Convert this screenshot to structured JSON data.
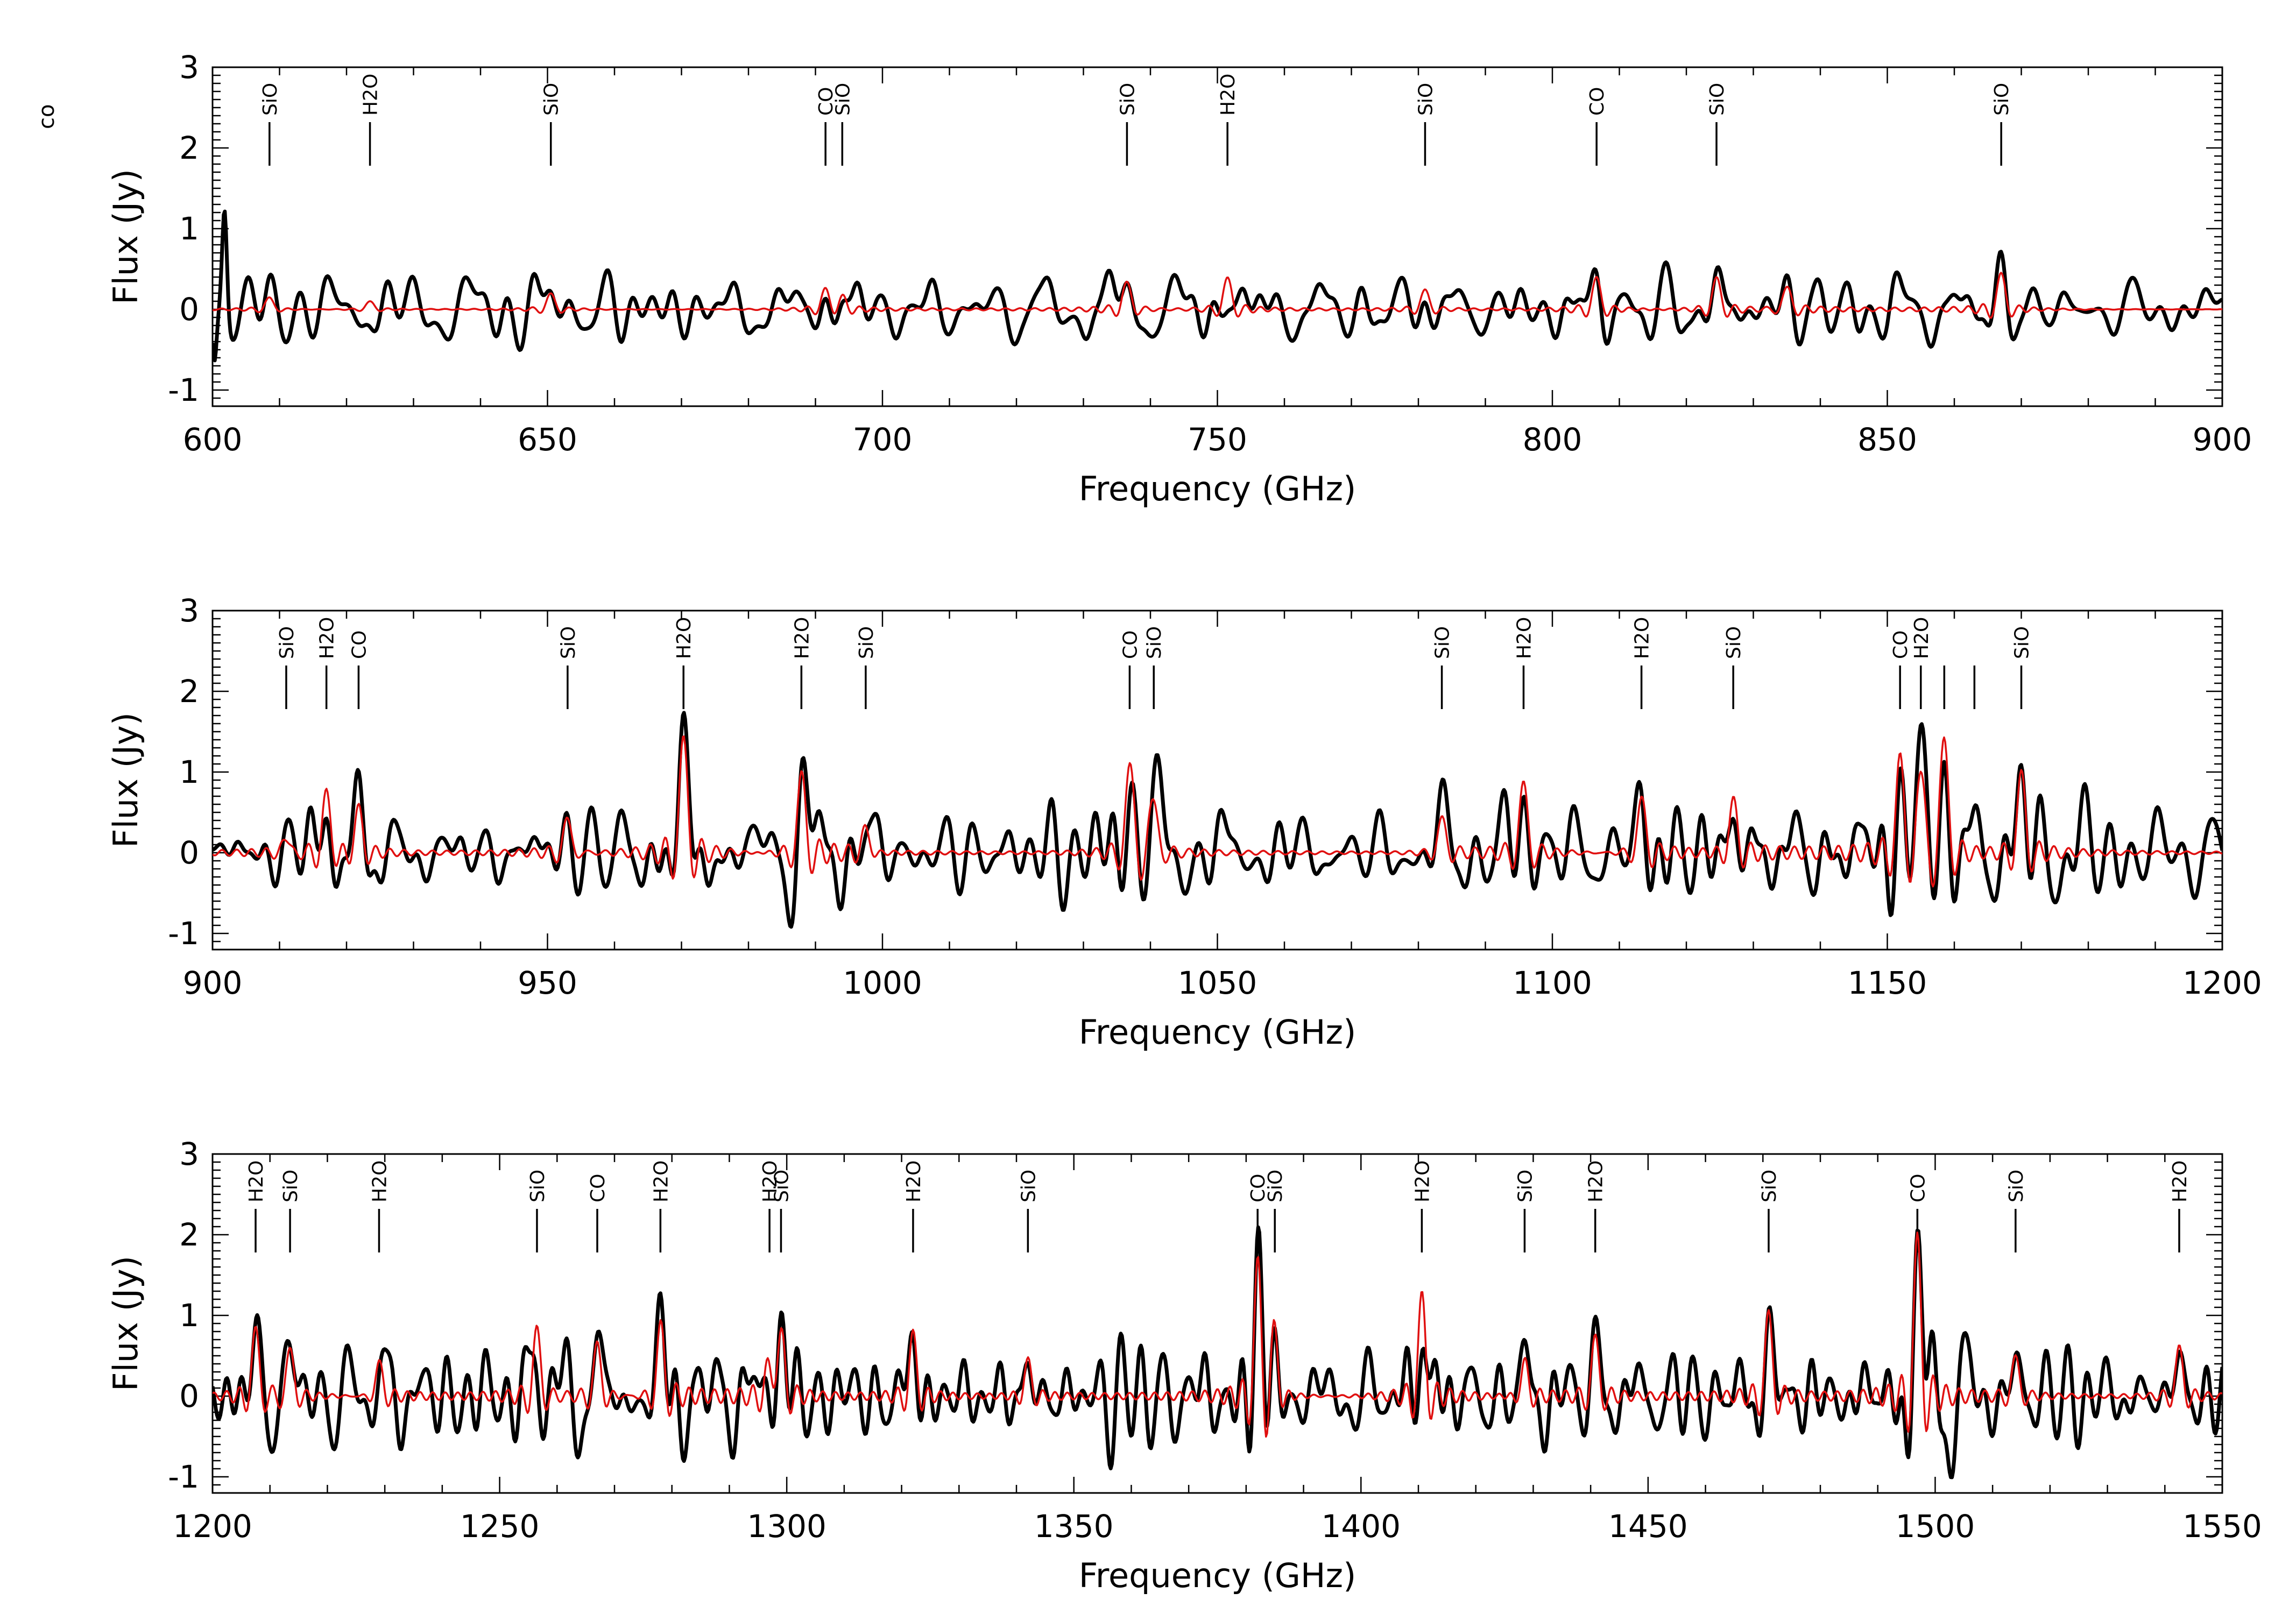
{
  "corner_label": "co",
  "colors": {
    "observed": "#000000",
    "model": "#e01010"
  },
  "chart_data": [
    {
      "type": "line",
      "xlabel": "Frequency (GHz)",
      "ylabel": "Flux (Jy)",
      "xlim": [
        600,
        900
      ],
      "ylim": [
        -1.2,
        3.0
      ],
      "xticks": [
        600,
        650,
        700,
        750,
        800,
        850,
        900
      ],
      "xtick_labels": [
        "600",
        "650",
        "700",
        "750",
        "800",
        "850",
        "900"
      ],
      "yticks": [
        -1,
        0,
        1,
        2,
        3
      ],
      "ytick_labels": [
        "-1",
        "0",
        "1",
        "2",
        "3"
      ],
      "line_ids": [
        {
          "freq": 608.5,
          "label": "SiO"
        },
        {
          "freq": 623.5,
          "label": "H2O"
        },
        {
          "freq": 650.5,
          "label": "SiO"
        },
        {
          "freq": 691.5,
          "label": "CO"
        },
        {
          "freq": 694.0,
          "label": "SiO"
        },
        {
          "freq": 736.5,
          "label": "SiO"
        },
        {
          "freq": 751.5,
          "label": "H2O"
        },
        {
          "freq": 781.0,
          "label": "SiO"
        },
        {
          "freq": 806.6,
          "label": "CO"
        },
        {
          "freq": 824.5,
          "label": "SiO"
        },
        {
          "freq": 867.0,
          "label": "SiO"
        }
      ],
      "model_peaks": [
        {
          "x": 608.5,
          "y": 0.15
        },
        {
          "x": 623.5,
          "y": 0.1
        },
        {
          "x": 650.5,
          "y": 0.2
        },
        {
          "x": 691.5,
          "y": 0.25
        },
        {
          "x": 694.0,
          "y": 0.15
        },
        {
          "x": 736.5,
          "y": 0.35
        },
        {
          "x": 751.5,
          "y": 0.4
        },
        {
          "x": 781.0,
          "y": 0.25
        },
        {
          "x": 806.6,
          "y": 0.4
        },
        {
          "x": 824.5,
          "y": 0.4
        },
        {
          "x": 835.0,
          "y": 0.3
        },
        {
          "x": 867.0,
          "y": 0.45
        }
      ],
      "noise_rms": 0.2,
      "seed": 11
    },
    {
      "type": "line",
      "xlabel": "Frequency (GHz)",
      "ylabel": "Flux (Jy)",
      "xlim": [
        900,
        1200
      ],
      "ylim": [
        -1.2,
        3.0
      ],
      "xticks": [
        900,
        950,
        1000,
        1050,
        1100,
        1150,
        1200
      ],
      "xtick_labels": [
        "900",
        "950",
        "1000",
        "1050",
        "1100",
        "1150",
        "1200"
      ],
      "yticks": [
        -1,
        0,
        1,
        2,
        3
      ],
      "ytick_labels": [
        "-1",
        "0",
        "1",
        "2",
        "3"
      ],
      "line_ids": [
        {
          "freq": 911.0,
          "label": "SiO"
        },
        {
          "freq": 917.0,
          "label": "H2O"
        },
        {
          "freq": 921.8,
          "label": "CO"
        },
        {
          "freq": 953.0,
          "label": "SiO"
        },
        {
          "freq": 970.3,
          "label": "H2O"
        },
        {
          "freq": 987.9,
          "label": "H2O"
        },
        {
          "freq": 997.5,
          "label": "SiO"
        },
        {
          "freq": 1036.9,
          "label": "CO"
        },
        {
          "freq": 1040.5,
          "label": "SiO"
        },
        {
          "freq": 1083.5,
          "label": "SiO"
        },
        {
          "freq": 1095.7,
          "label": "H2O"
        },
        {
          "freq": 1113.3,
          "label": "H2O"
        },
        {
          "freq": 1127.0,
          "label": "SiO"
        },
        {
          "freq": 1151.9,
          "label": "CO"
        },
        {
          "freq": 1155.0,
          "label": "H2O"
        },
        {
          "freq": 1158.5,
          "label": ""
        },
        {
          "freq": 1163.0,
          "label": ""
        },
        {
          "freq": 1170.0,
          "label": "SiO"
        }
      ],
      "model_peaks": [
        {
          "x": 911.0,
          "y": 0.2
        },
        {
          "x": 917.0,
          "y": 0.75
        },
        {
          "x": 921.8,
          "y": 0.55
        },
        {
          "x": 953.0,
          "y": 0.45
        },
        {
          "x": 970.3,
          "y": 1.45
        },
        {
          "x": 987.9,
          "y": 1.0
        },
        {
          "x": 997.5,
          "y": 0.3
        },
        {
          "x": 1036.9,
          "y": 1.15
        },
        {
          "x": 1040.5,
          "y": 0.75
        },
        {
          "x": 1083.5,
          "y": 0.45
        },
        {
          "x": 1095.7,
          "y": 0.9
        },
        {
          "x": 1113.3,
          "y": 0.7
        },
        {
          "x": 1127.0,
          "y": 0.65
        },
        {
          "x": 1151.9,
          "y": 1.15
        },
        {
          "x": 1155.0,
          "y": 1.05
        },
        {
          "x": 1158.5,
          "y": 1.45
        },
        {
          "x": 1170.0,
          "y": 1.0
        }
      ],
      "noise_rms": 0.3,
      "seed": 23
    },
    {
      "type": "line",
      "xlabel": "Frequency (GHz)",
      "ylabel": "Flux (Jy)",
      "xlim": [
        1200,
        1550
      ],
      "ylim": [
        -1.2,
        3.0
      ],
      "xticks": [
        1200,
        1250,
        1300,
        1350,
        1400,
        1450,
        1500,
        1550
      ],
      "xtick_labels": [
        "1200",
        "1250",
        "1300",
        "1350",
        "1400",
        "1450",
        "1500",
        "1550"
      ],
      "yticks": [
        -1,
        0,
        1,
        2,
        3
      ],
      "ytick_labels": [
        "-1",
        "0",
        "1",
        "2",
        "3"
      ],
      "line_ids": [
        {
          "freq": 1207.5,
          "label": "H2O"
        },
        {
          "freq": 1213.5,
          "label": "SiO"
        },
        {
          "freq": 1229.0,
          "label": "H2O"
        },
        {
          "freq": 1256.5,
          "label": "SiO"
        },
        {
          "freq": 1267.0,
          "label": "CO"
        },
        {
          "freq": 1278.0,
          "label": "H2O"
        },
        {
          "freq": 1297.0,
          "label": "H2O"
        },
        {
          "freq": 1299.0,
          "label": "SiO"
        },
        {
          "freq": 1322.0,
          "label": "H2O"
        },
        {
          "freq": 1342.0,
          "label": "SiO"
        },
        {
          "freq": 1382.0,
          "label": "CO"
        },
        {
          "freq": 1385.0,
          "label": "SiO"
        },
        {
          "freq": 1410.6,
          "label": "H2O"
        },
        {
          "freq": 1428.5,
          "label": "SiO"
        },
        {
          "freq": 1440.8,
          "label": "H2O"
        },
        {
          "freq": 1471.0,
          "label": "SiO"
        },
        {
          "freq": 1496.9,
          "label": "CO"
        },
        {
          "freq": 1514.0,
          "label": "SiO"
        },
        {
          "freq": 1542.5,
          "label": "H2O"
        }
      ],
      "model_peaks": [
        {
          "x": 1207.5,
          "y": 0.9
        },
        {
          "x": 1213.5,
          "y": 0.65
        },
        {
          "x": 1229.0,
          "y": 0.45
        },
        {
          "x": 1256.5,
          "y": 0.9
        },
        {
          "x": 1267.0,
          "y": 0.7
        },
        {
          "x": 1278.0,
          "y": 0.95
        },
        {
          "x": 1297.0,
          "y": 0.5
        },
        {
          "x": 1299.0,
          "y": 0.9
        },
        {
          "x": 1322.0,
          "y": 0.8
        },
        {
          "x": 1342.0,
          "y": 0.45
        },
        {
          "x": 1382.0,
          "y": 1.65
        },
        {
          "x": 1385.0,
          "y": 0.8
        },
        {
          "x": 1410.6,
          "y": 1.3
        },
        {
          "x": 1428.5,
          "y": 0.45
        },
        {
          "x": 1440.8,
          "y": 0.8
        },
        {
          "x": 1471.0,
          "y": 1.1
        },
        {
          "x": 1496.9,
          "y": 2.05
        },
        {
          "x": 1514.0,
          "y": 0.55
        },
        {
          "x": 1542.5,
          "y": 0.65
        }
      ],
      "noise_rms": 0.3,
      "seed": 37
    }
  ]
}
